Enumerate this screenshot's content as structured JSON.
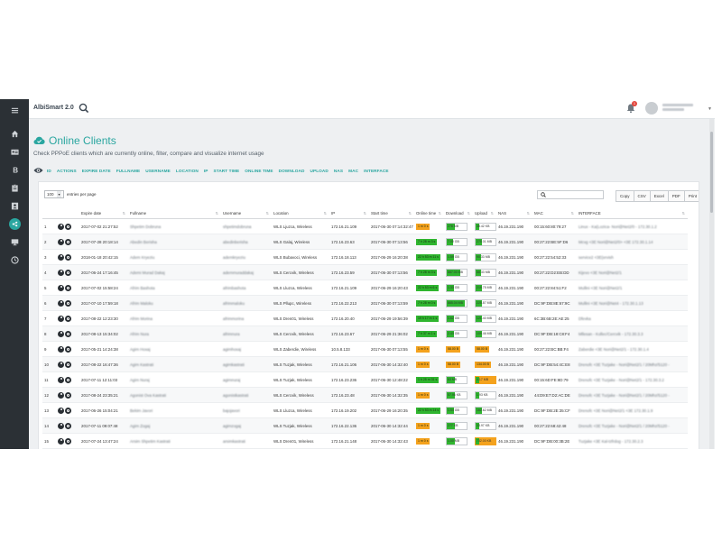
{
  "app": {
    "brand": "AlbiSmart 2.0"
  },
  "header": {
    "notification_count": "1"
  },
  "sidebar": {
    "icons": [
      "menu-icon",
      "home-icon",
      "id-card-icon",
      "billing-icon",
      "clipboard-icon",
      "contact-icon",
      "share-icon",
      "monitor-icon",
      "clock-icon"
    ],
    "active_index": 6
  },
  "page": {
    "title": "Online Clients",
    "subtitle": "Check PPPoE clients which are currently online, filter, compare and visualize internet usage"
  },
  "colors": {
    "accent": "#2aa6a0",
    "sidebar": "#2b3035",
    "online_green": "#2fb52f",
    "online_orange": "#f4a21d"
  },
  "column_toggles": [
    "ID",
    "ACTIONS",
    "EXPIRE DATE",
    "FULLNAME",
    "USERNAME",
    "LOCATION",
    "IP",
    "START TIME",
    "ONLINE TIME",
    "DOWNLOAD",
    "UPLOAD",
    "NAS",
    "MAC",
    "INTERFACE"
  ],
  "table_controls": {
    "page_length": "100",
    "entries_label": "entries per page",
    "buttons": [
      "Copy",
      "CSV",
      "Excel",
      "PDF",
      "Print"
    ]
  },
  "table": {
    "headers": [
      "",
      "",
      "Expire date",
      "Fullname",
      "Username",
      "Location",
      "IP",
      "Start time",
      "Online time",
      "Download",
      "Upload",
      "NAS",
      "MAC",
      "INTERFACE"
    ],
    "rows": [
      {
        "id": "1",
        "expire": "2017-07-02 21:27:52",
        "fullname": "Shpetim Dobruna",
        "username": "shpetimdobruna",
        "location": "WLS Ljuzca, Wireless",
        "ip": "172.16.21.109",
        "start": "2017-06-30 07:14:32:47",
        "online": "1 m 0 s",
        "online_color": "orange",
        "download": "278 MB",
        "download_fill": 0.4,
        "upload": "38.42 KB",
        "upload_fill": 0.2,
        "nas": "46.19.231.190",
        "mac": "00:15:60:80:79:27",
        "interface": "Linux - Ka(Lozica- Nori@Net2/0 - 172.30.1.2"
      },
      {
        "id": "2",
        "expire": "2017-07-28 20:18:14",
        "fullname": "Abedin Berisha",
        "username": "abedinberisha",
        "location": "WLS Galaj, Wireless",
        "ip": "172.16.23.63",
        "start": "2017-06-30 07:13:56",
        "online": "7 h 28 m 3 s",
        "online_color": "green",
        "download": "7.00 GB",
        "download_fill": 0.3,
        "upload": "270.01 MB",
        "upload_fill": 0.3,
        "nas": "46.19.231.190",
        "mac": "00:27:22:BE:5F:D6",
        "interface": "Mcvg <3E Nori@Net2/0> <3E 172.30.1.14"
      },
      {
        "id": "3",
        "expire": "2018-01-18 20:42:15",
        "fullname": "Adem Kryeziu",
        "username": "ademkryeziu",
        "location": "WLS Bubavoci, Wireless",
        "ip": "172.16.18.113",
        "start": "2017-06-29 16:20:38",
        "online": "22 h 53 m 11 s",
        "online_color": "green",
        "download": "1.59 GB",
        "download_fill": 0.35,
        "upload": "90.33 MB",
        "upload_fill": 0.25,
        "nas": "46.19.231.190",
        "mac": "00:27:22:54:52:33",
        "interface": "service2 <3E(ervish"
      },
      {
        "id": "4",
        "expire": "2017-06-24 17:16:45",
        "fullname": "Ademi Murad Dakaj",
        "username": "ademmuraddakaj",
        "location": "WLS Cercvik, Wireless",
        "ip": "172.16.23.59",
        "start": "2017-06-30 07:13:56",
        "online": "7 h 28 m 3 s",
        "online_color": "green",
        "download": "867.00 MB",
        "download_fill": 0.7,
        "upload": "88.33 MB",
        "upload_fill": 0.25,
        "nas": "46.19.231.190",
        "mac": "00:27:22:D2:EB:DD",
        "interface": "Kijevo <3E Nori@Net2/1"
      },
      {
        "id": "5",
        "expire": "2017-07-02 15:58:24",
        "fullname": "Afrim Bashota",
        "username": "afrimbashota",
        "location": "WLS Lluzca, Wireless",
        "ip": "172.16.21.109",
        "start": "2017-06-29 16:20:43",
        "online": "22 h 53 m 6 s",
        "online_color": "green",
        "download": "1.33 GB",
        "download_fill": 0.35,
        "upload": "219.75 MB",
        "upload_fill": 0.3,
        "nas": "46.19.231.190",
        "mac": "00:27:22:84:51:F2",
        "interface": "Mullini <3E Nori@Net2/1"
      },
      {
        "id": "6",
        "expire": "2017-07-10 17:59:18",
        "fullname": "Afrim Maloku",
        "username": "afrimmaloku",
        "location": "WLS Pllupc, Wireless",
        "ip": "172.16.22.213",
        "start": "2017-06-30 07:13:59",
        "online": "7 h 28 m 0 s",
        "online_color": "green",
        "download": "865.04 MB",
        "download_fill": 0.9,
        "upload": "225.87 MB",
        "upload_fill": 0.3,
        "nas": "46.19.231.190",
        "mac": "DC:9F:DB:8E:67:9C",
        "interface": "Mullini <3E Nori@Net4 - 172.30.1.13"
      },
      {
        "id": "7",
        "expire": "2017-08-22 12:23:30",
        "fullname": "Afrim Morina",
        "username": "afrimmorina",
        "location": "WLS Dren01, Wireless",
        "ip": "172.16.20.40",
        "start": "2017-06-29 19:56:39",
        "online": "19 h 17 m 1 s",
        "online_color": "green",
        "download": "1.62 GB",
        "download_fill": 0.35,
        "upload": "121.40 MB",
        "upload_fill": 0.3,
        "nas": "46.19.231.190",
        "mac": "6C:3B:6B:2E:AE:25",
        "interface": "Dfevka"
      },
      {
        "id": "8",
        "expire": "2017-08-13 15:34:02",
        "fullname": "Afrim Nura",
        "username": "afrimnura",
        "location": "WLS Cercvik, Wireless",
        "ip": "172.16.23.67",
        "start": "2017-06-29 21:36:02",
        "online": "7 h 37 m 1 s",
        "online_color": "green",
        "download": "2.43 GB",
        "download_fill": 0.35,
        "upload": "109.46 MB",
        "upload_fill": 0.3,
        "nas": "46.19.231.190",
        "mac": "DC:9F:DB:18:C8:F4",
        "interface": "Mllesan - Kollec/Cercvik - 172.30.3.3"
      },
      {
        "id": "9",
        "expire": "2017-05-21 14:24:38",
        "fullname": "Agim Hoxaj",
        "username": "agimhoxaj",
        "location": "WLS Zaberdie, Wireless",
        "ip": "10.5.8.133",
        "start": "2017-06-30 07:13:55",
        "online": "1 m 0 s",
        "online_color": "orange",
        "download": "58.00 B",
        "download_color": "orange",
        "upload": "58.00 B",
        "upload_color": "orange",
        "nas": "46.19.231.190",
        "mac": "00:27:22:BC:BB:F4",
        "interface": "Zaberdie <3E Nori@Net2/1 - 172.30.1.4"
      },
      {
        "id": "10",
        "expire": "2017-08-22 16:47:36",
        "fullname": "Agim Kastrati",
        "username": "agimkastrati",
        "location": "WLS Tuzjak, Wireless",
        "ip": "172.16.21.106",
        "start": "2017-06-30 14:32:40",
        "online": "1 m 0 s",
        "online_color": "orange",
        "download": "58.00 B",
        "download_color": "orange",
        "upload": "134.00 B",
        "upload_color": "orange",
        "nas": "46.19.231.190",
        "mac": "DC:9F:DB:54:4C:E8",
        "interface": "Drenofc <3E Tuzjake - Nori@Net2/1 / 20Mhz/5120 -"
      },
      {
        "id": "11",
        "expire": "2017-07-11 12:11:03",
        "fullname": "Agim Nuraj",
        "username": "agimnuraj",
        "location": "WLS Tuzjak, Wireless",
        "ip": "172.16.23.236",
        "start": "2017-06-30 12:48:22",
        "online": "1 h 25 m 31 s",
        "online_color": "green",
        "download": "63 MB",
        "download_fill": 0.4,
        "upload": "4.17 MB",
        "upload_fill": 0.2,
        "upload_color": "orange",
        "nas": "46.19.231.190",
        "mac": "00:15:6D:FE:8D:79",
        "interface": "Drenofc <3E Tuzjake - Nori@Net2/1 - 172.30.3.2"
      },
      {
        "id": "12",
        "expire": "2017-08-24 23:35:21",
        "fullname": "Agonist Ova Kastrati",
        "username": "agonistkastrati",
        "location": "WLS Cercvik, Wireless",
        "ip": "172.16.23.48",
        "start": "2017-06-30 14:32:35",
        "online": "1 m 0 s",
        "online_color": "orange",
        "download": "57.96 KB",
        "download_fill": 0.4,
        "upload": "1.93 KB",
        "upload_fill": 0.2,
        "nas": "46.19.231.190",
        "mac": "44:D9:E7:D2:AC:DE",
        "interface": "Drenofc <3E Tuzjake - Nori@Net2/1 / 20Mhz/5120 -"
      },
      {
        "id": "13",
        "expire": "2017-06-26 15:04:21",
        "fullname": "Bekim Javori",
        "username": "bajojavori",
        "location": "WLS Lluzca, Wireless",
        "ip": "172.16.19.202",
        "start": "2017-06-29 16:20:35",
        "online": "22 h 53 m 14 s",
        "online_color": "green",
        "download": "1.54 GB",
        "download_fill": 0.35,
        "upload": "162.62 MB",
        "upload_fill": 0.3,
        "nas": "46.19.231.190",
        "mac": "DC:9F:DB:2E:35:CF",
        "interface": "Drenofc <3E Nori@Net2/1 <3E 172.30.1.9"
      },
      {
        "id": "14",
        "expire": "2017-07-11 09:07:48",
        "fullname": "Agim Zogaj",
        "username": "agimzogaj",
        "location": "WLS Tuzjak, Wireless",
        "ip": "172.16.22.136",
        "start": "2017-06-30 14:32:44",
        "online": "1 m 0 s",
        "online_color": "orange",
        "download": "277 KB",
        "download_fill": 0.4,
        "upload": "33.97 KB",
        "upload_fill": 0.2,
        "nas": "46.19.231.190",
        "mac": "00:27:22:68:42:48",
        "interface": "Drenofc <3E Tuzjake - Nori@Net2/1 / 20Mhz/5120 -"
      },
      {
        "id": "15",
        "expire": "2017-07-24 13:47:24",
        "fullname": "Arsim Shpetim Kastrati",
        "username": "arsimkastrati",
        "location": "WLS Dren01, Wireless",
        "ip": "172.16.21.148",
        "start": "2017-06-30 14:32:43",
        "online": "1 m 0 s",
        "online_color": "orange",
        "download": "1.00 MB",
        "download_fill": 0.4,
        "upload": "732.00 KB",
        "upload_fill": 0.2,
        "upload_color": "orange",
        "nas": "46.19.231.190",
        "mac": "DC:9F:DB:00:3B:2E",
        "interface": "Tuzjake <3E Kal-tzfrdog - 172.30.2.3"
      }
    ]
  }
}
